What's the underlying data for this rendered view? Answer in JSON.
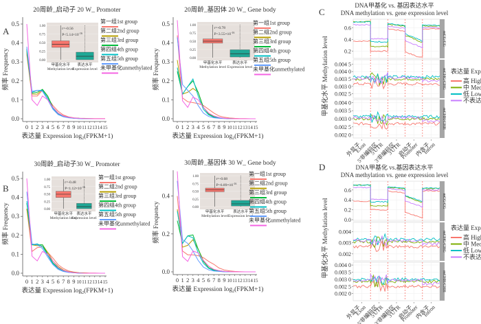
{
  "panel_labels": [
    "A",
    "B",
    "C",
    "D"
  ],
  "common": {
    "freq_axis_label": "频率 Frequency",
    "expr_axis_label_prefix": "表达量  Expression log",
    "expr_axis_label_sub": "2",
    "expr_axis_label_suffix": "(FPKM+1)",
    "inset_x_labels": [
      {
        "zh": "甲基化水平",
        "en": "Methylation level"
      },
      {
        "zh": "表达水平",
        "en": "Expression level"
      }
    ],
    "inset_y_ticks": [
      "0.00",
      "0.25",
      "0.50",
      "0.75",
      "1.00"
    ],
    "group_legend": [
      {
        "label": "第一组1st group",
        "color": "#F8766D"
      },
      {
        "label": "第二组2nd group",
        "color": "#B79F00"
      },
      {
        "label": "第三组3rd group",
        "color": "#00BA38"
      },
      {
        "label": "第四组4th group",
        "color": "#00BFC4"
      },
      {
        "label": "第五组5th group",
        "color": "#619CFF"
      },
      {
        "label": "未甲基化unmethylated",
        "color": "#F564E3"
      }
    ],
    "meth_axis_label": "甲基化水平 Methylation level",
    "expr_legend_title": "表达量  Expression",
    "expr_legend": [
      {
        "label": "高 High",
        "color": "#F8766D"
      },
      {
        "label": "中 Medium",
        "color": "#7CAE00"
      },
      {
        "label": "低 Low",
        "color": "#00BFC4"
      },
      {
        "label": "不表达 None",
        "color": "#C77CFF"
      }
    ],
    "region_labels": [
      {
        "zh": "外显子",
        "en": "Exon"
      },
      {
        "zh": "5'非编码区",
        "en": "5'UTR"
      },
      {
        "zh": "3'非编码区",
        "en": "3'UTR"
      },
      {
        "zh": "启动子",
        "en": "Promoter"
      },
      {
        "zh": "内含子",
        "en": "Intron"
      }
    ],
    "strip_labels": [
      "mCG/CG",
      "mCHG/CHG",
      "mCHH/CHH"
    ],
    "meth_title_zh": "DNA甲基化 vs. 基因表达水平",
    "meth_title_en": "DNA methylation vs. gene expression level"
  },
  "chart_data": [
    {
      "id": "A1",
      "type": "line",
      "title": "20周龄_启动子  20 W_ Promoter",
      "xlabel": "表达量  Expression log2(FPKM+1)",
      "ylabel": "频率 Frequency",
      "x": [
        0,
        1,
        2,
        3,
        4,
        5,
        6,
        7,
        8,
        9,
        10,
        11,
        12,
        13,
        14,
        15
      ],
      "ylim": [
        0,
        0.5
      ],
      "yticks": [
        "0.0",
        "0.1",
        "0.2",
        "0.3",
        "0.4",
        "0.5"
      ],
      "series": [
        {
          "name": "第一组1st group",
          "values": [
            0.34,
            0.12,
            0.12,
            0.15,
            0.11,
            0.07,
            0.04,
            0.02,
            0.01,
            0.005,
            0.003,
            0.002,
            0.001,
            0.001,
            0.001,
            0.001
          ]
        },
        {
          "name": "第二组2nd group",
          "values": [
            0.35,
            0.13,
            0.13,
            0.155,
            0.12,
            0.06,
            0.03,
            0.015,
            0.008,
            0.004,
            0.002,
            0.001,
            0.001,
            0,
            0,
            0
          ]
        },
        {
          "name": "第三组3rd group",
          "values": [
            0.36,
            0.135,
            0.14,
            0.155,
            0.12,
            0.06,
            0.03,
            0.013,
            0.007,
            0.003,
            0.002,
            0.001,
            0,
            0,
            0,
            0
          ]
        },
        {
          "name": "第四组4th group",
          "values": [
            0.37,
            0.14,
            0.15,
            0.15,
            0.11,
            0.055,
            0.025,
            0.012,
            0.006,
            0.003,
            0.001,
            0,
            0,
            0,
            0,
            0
          ]
        },
        {
          "name": "第五组5th group",
          "values": [
            0.38,
            0.145,
            0.15,
            0.145,
            0.1,
            0.05,
            0.022,
            0.01,
            0.005,
            0.002,
            0.001,
            0,
            0,
            0,
            0,
            0
          ]
        },
        {
          "name": "未甲基化unmethylated",
          "values": [
            0.5,
            0.1,
            0.07,
            0.12,
            0.1,
            0.06,
            0.03,
            0.015,
            0.008,
            0.004,
            0.002,
            0.001,
            0.001,
            0,
            0,
            0
          ]
        }
      ],
      "inset": {
        "r": "r=-0.56",
        "p": "P<5.14×10",
        "p_exp": "-16",
        "boxes": [
          {
            "name": "甲基化水平 Methylation level",
            "q1": 0.36,
            "median": 0.45,
            "q3": 0.55,
            "lo": 0.0,
            "hi": 1.0,
            "color": "#F8766D"
          },
          {
            "name": "表达水平 Expression level",
            "q1": 0.0,
            "median": 0.1,
            "q3": 0.22,
            "lo": 0.0,
            "hi": 1.0,
            "color": "#1FA896"
          }
        ]
      }
    },
    {
      "id": "A2",
      "type": "line",
      "title": "20周龄_基因体   20 W_ Gene body",
      "xlabel": "表达量  Expression log2(FPKM+1)",
      "ylabel": "频率 Frequency",
      "x": [
        0,
        1,
        2,
        3,
        4,
        5,
        6,
        7,
        8,
        9,
        10,
        11,
        12,
        13,
        14,
        15
      ],
      "ylim": [
        0,
        0.5
      ],
      "yticks": [
        "0.0",
        "0.1",
        "0.2",
        "0.3",
        "0.4",
        "0.5"
      ],
      "series": [
        {
          "name": "第一组1st group",
          "values": [
            0.44,
            0.11,
            0.09,
            0.085,
            0.08,
            0.07,
            0.05,
            0.03,
            0.015,
            0.008,
            0.004,
            0.002,
            0.001,
            0.001,
            0,
            0
          ]
        },
        {
          "name": "第二组2nd group",
          "values": [
            0.31,
            0.13,
            0.14,
            0.16,
            0.14,
            0.06,
            0.03,
            0.012,
            0.006,
            0.003,
            0.001,
            0,
            0,
            0,
            0,
            0
          ]
        },
        {
          "name": "第三组3rd group",
          "values": [
            0.25,
            0.13,
            0.17,
            0.2,
            0.14,
            0.06,
            0.025,
            0.01,
            0.005,
            0.002,
            0.001,
            0,
            0,
            0,
            0,
            0
          ]
        },
        {
          "name": "第四组4th group",
          "values": [
            0.27,
            0.13,
            0.17,
            0.21,
            0.12,
            0.05,
            0.02,
            0.008,
            0.004,
            0.002,
            0,
            0,
            0,
            0,
            0,
            0
          ]
        },
        {
          "name": "第五组5th group",
          "values": [
            0.43,
            0.18,
            0.15,
            0.12,
            0.07,
            0.03,
            0.012,
            0.005,
            0.002,
            0.001,
            0,
            0,
            0,
            0,
            0,
            0
          ]
        },
        {
          "name": "未甲基化unmethylated",
          "values": [
            0.52,
            0.095,
            0.06,
            0.115,
            0.1,
            0.06,
            0.03,
            0.015,
            0.007,
            0.003,
            0.001,
            0,
            0,
            0,
            0,
            0
          ]
        }
      ],
      "inset": {
        "r": "r=-0.78",
        "p": "P<3.55×10",
        "p_exp": "-16",
        "boxes": [
          {
            "name": "甲基化水平 Methylation level",
            "q1": 0.44,
            "median": 0.5,
            "q3": 0.57,
            "lo": 0.0,
            "hi": 1.0,
            "color": "#F8766D"
          },
          {
            "name": "表达水平 Expression level",
            "q1": 0.02,
            "median": 0.12,
            "q3": 0.24,
            "lo": 0.0,
            "hi": 1.0,
            "color": "#1FA896"
          }
        ]
      }
    },
    {
      "id": "B1",
      "type": "line",
      "title": "30周龄_启动子30 W_ Promoter",
      "xlabel": "表达量  Expression log2(FPKM+1)",
      "ylabel": "频率 Frequency",
      "x": [
        0,
        1,
        2,
        3,
        4,
        5,
        6,
        7,
        8,
        9,
        10,
        11,
        12,
        13,
        14,
        15
      ],
      "ylim": [
        0,
        0.5
      ],
      "yticks": [
        "0.0",
        "0.1",
        "0.2",
        "0.3",
        "0.4",
        "0.5"
      ],
      "series": [
        {
          "name": "第一组1st group",
          "values": [
            0.34,
            0.115,
            0.135,
            0.14,
            0.11,
            0.08,
            0.045,
            0.025,
            0.012,
            0.006,
            0.003,
            0.002,
            0.001,
            0.001,
            0,
            0
          ]
        },
        {
          "name": "第二组2nd group",
          "values": [
            0.34,
            0.15,
            0.145,
            0.15,
            0.11,
            0.065,
            0.035,
            0.017,
            0.008,
            0.004,
            0.002,
            0.001,
            0,
            0,
            0,
            0
          ]
        },
        {
          "name": "第三组3rd group",
          "values": [
            0.37,
            0.15,
            0.15,
            0.15,
            0.1,
            0.055,
            0.028,
            0.013,
            0.006,
            0.003,
            0.001,
            0,
            0,
            0,
            0,
            0
          ]
        },
        {
          "name": "第四组4th group",
          "values": [
            0.38,
            0.15,
            0.155,
            0.14,
            0.095,
            0.05,
            0.025,
            0.011,
            0.005,
            0.002,
            0.001,
            0,
            0,
            0,
            0,
            0
          ]
        },
        {
          "name": "第五组5th group",
          "values": [
            0.43,
            0.155,
            0.15,
            0.13,
            0.085,
            0.045,
            0.02,
            0.009,
            0.004,
            0.002,
            0,
            0,
            0,
            0,
            0,
            0
          ]
        },
        {
          "name": "未甲基化unmethylated",
          "values": [
            0.5,
            0.09,
            0.065,
            0.115,
            0.1,
            0.065,
            0.03,
            0.015,
            0.007,
            0.003,
            0.001,
            0,
            0,
            0,
            0,
            0
          ]
        }
      ],
      "inset": {
        "r": "r=-0.48",
        "p": "P<1.12×10",
        "p_exp": "-16",
        "boxes": [
          {
            "name": "甲基化水平 Methylation level",
            "q1": 0.38,
            "median": 0.49,
            "q3": 0.59,
            "lo": 0.0,
            "hi": 1.0,
            "color": "#F8766D"
          },
          {
            "name": "表达水平 Expression level",
            "q1": 0.0,
            "median": 0.07,
            "q3": 0.18,
            "lo": 0.0,
            "hi": 1.0,
            "color": "#1FA896"
          }
        ]
      }
    },
    {
      "id": "B2",
      "type": "line",
      "title": "30周龄_基因体 30 W_ Gene body",
      "xlabel": "表达量  Expression log2(FPKM+1)",
      "ylabel": "频率 Frequency",
      "x": [
        0,
        1,
        2,
        3,
        4,
        5,
        6,
        7,
        8,
        9,
        10,
        11,
        12,
        13,
        14,
        15
      ],
      "ylim": [
        0,
        0.5
      ],
      "yticks": [
        "0.0",
        "0.2",
        "0.4"
      ],
      "series": [
        {
          "name": "第一组1st group",
          "values": [
            0.4,
            0.11,
            0.09,
            0.09,
            0.085,
            0.075,
            0.055,
            0.04,
            0.02,
            0.01,
            0.005,
            0.002,
            0.001,
            0,
            0,
            0
          ]
        },
        {
          "name": "第二组2nd group",
          "values": [
            0.33,
            0.13,
            0.14,
            0.17,
            0.12,
            0.06,
            0.03,
            0.012,
            0.006,
            0.003,
            0.001,
            0,
            0,
            0,
            0,
            0
          ]
        },
        {
          "name": "第三组3rd group",
          "values": [
            0.27,
            0.15,
            0.19,
            0.195,
            0.12,
            0.055,
            0.022,
            0.009,
            0.004,
            0.002,
            0,
            0,
            0,
            0,
            0,
            0
          ]
        },
        {
          "name": "第四组4th group",
          "values": [
            0.32,
            0.15,
            0.19,
            0.18,
            0.1,
            0.045,
            0.018,
            0.007,
            0.003,
            0.001,
            0,
            0,
            0,
            0,
            0,
            0
          ]
        },
        {
          "name": "第五组5th group",
          "values": [
            0.48,
            0.17,
            0.15,
            0.11,
            0.06,
            0.025,
            0.01,
            0.004,
            0.002,
            0,
            0,
            0,
            0,
            0,
            0,
            0
          ]
        },
        {
          "name": "未甲基化unmethylated",
          "values": [
            0.53,
            0.08,
            0.055,
            0.11,
            0.1,
            0.06,
            0.03,
            0.013,
            0.006,
            0.002,
            0.001,
            0,
            0,
            0,
            0,
            0
          ]
        }
      ],
      "inset": {
        "r": "r=-0.68",
        "p": "P<6.89×10",
        "p_exp": "-16",
        "boxes": [
          {
            "name": "甲基化水平 Methylation level",
            "q1": 0.48,
            "median": 0.54,
            "q3": 0.6,
            "lo": 0.0,
            "hi": 1.0,
            "color": "#F8766D"
          },
          {
            "name": "表达水平 Expression level",
            "q1": 0.02,
            "median": 0.09,
            "q3": 0.2,
            "lo": 0.0,
            "hi": 1.0,
            "color": "#1FA896"
          }
        ]
      }
    },
    {
      "id": "C",
      "type": "line",
      "title": "DNA甲基化 vs. 基因表达水平 / DNA methylation vs. gene expression level",
      "ylabel": "甲基化水平 Methylation level",
      "x_regions": [
        "Exon",
        "5'UTR",
        "3'UTR",
        "Promoter",
        "Intron"
      ],
      "facets": [
        {
          "strip": "mCG/CG",
          "ylim": [
            0.1,
            0.72
          ],
          "yticks": [
            {
              "v": 0.2,
              "t": "0.2"
            },
            {
              "v": 0.4,
              "t": "0.4"
            },
            {
              "v": 0.6,
              "t": "0.6"
            }
          ],
          "series": {
            "High": [
              0.38,
              0.36,
              0.28,
              0.2,
              0.22,
              0.12,
              0.06,
              0.55,
              0.6
            ],
            "Medium": [
              0.7,
              0.69,
              0.65,
              0.28,
              0.26,
              0.68,
              0.55,
              0.4,
              0.15,
              0.62,
              0.64
            ],
            "Low": [
              0.7,
              0.69,
              0.66,
              0.36,
              0.35,
              0.68,
              0.56,
              0.42,
              0.2,
              0.63,
              0.65
            ],
            "None": [
              0.66,
              0.65,
              0.62,
              0.4,
              0.41,
              0.65,
              0.52,
              0.3,
              0.22,
              0.58,
              0.6
            ]
          }
        },
        {
          "strip": "mCHG/CHG",
          "ylim": [
            0.0023,
            0.0047
          ],
          "yticks": [
            {
              "v": 0.0025,
              "t": "0.002 5"
            },
            {
              "v": 0.003,
              "t": "0.003 0"
            },
            {
              "v": 0.0035,
              "t": "0.003 5"
            },
            {
              "v": 0.004,
              "t": "0.004 0"
            },
            {
              "v": 0.0045,
              "t": "0.004 5"
            }
          ]
        },
        {
          "strip": "mCHH/CHH",
          "ylim": [
            0.0019,
            0.0041
          ],
          "yticks": [
            {
              "v": 0.002,
              "t": "0.002 0"
            },
            {
              "v": 0.0025,
              "t": "0.002 5"
            },
            {
              "v": 0.003,
              "t": "0.003 0"
            },
            {
              "v": 0.0035,
              "t": "0.003 5"
            },
            {
              "v": 0.004,
              "t": "0.004 0"
            }
          ]
        }
      ]
    },
    {
      "id": "D",
      "type": "line",
      "title": "DNA甲基化 vs.基因表达水平 / DNA methylation vs. gene expression level",
      "ylabel": "甲基化水平 Methylation level",
      "x_regions": [
        "Exon",
        "5'UTR",
        "3'UTR",
        "Promoter",
        "Intron"
      ],
      "facets": [
        {
          "strip": "mCG/CG",
          "ylim": [
            0.0,
            0.75
          ],
          "yticks": [
            {
              "v": 0.0,
              "t": "0.0"
            },
            {
              "v": 0.2,
              "t": "0.2"
            },
            {
              "v": 0.4,
              "t": "0.4"
            },
            {
              "v": 0.6,
              "t": "0.6"
            }
          ]
        },
        {
          "strip": "mCHG/CHG",
          "ylim": [
            0.0015,
            0.0047
          ],
          "yticks": [
            {
              "v": 0.002,
              "t": "0.002"
            },
            {
              "v": 0.003,
              "t": "0.003"
            },
            {
              "v": 0.004,
              "t": "0.004"
            }
          ]
        },
        {
          "strip": "mCHH/CHH",
          "ylim": [
            0.0016,
            0.0041
          ],
          "yticks": [
            {
              "v": 0.002,
              "t": "0.002 0"
            },
            {
              "v": 0.0025,
              "t": "0.002 5"
            },
            {
              "v": 0.003,
              "t": "0.003 0"
            },
            {
              "v": 0.0035,
              "t": "0.003 5"
            },
            {
              "v": 0.004,
              "t": "0.004 0"
            }
          ]
        }
      ]
    }
  ]
}
